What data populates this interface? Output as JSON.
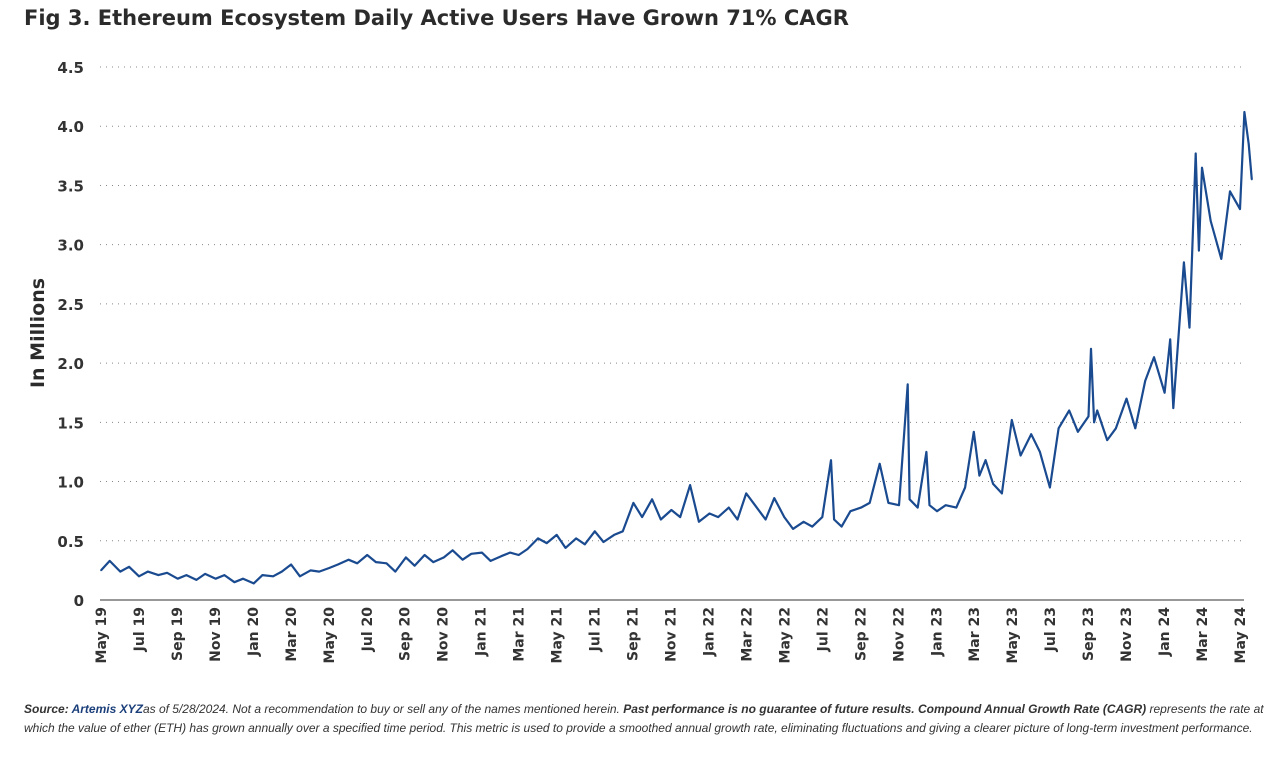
{
  "chart_data": {
    "type": "line",
    "title": "Fig 3. Ethereum Ecosystem Daily Active Users Have Grown 71% CAGR",
    "xlabel": "",
    "ylabel": "In Millions",
    "ylim": [
      0,
      4.5
    ],
    "yticks": [
      "0",
      "0.5",
      "1.0",
      "1.5",
      "2.0",
      "2.5",
      "3.0",
      "3.5",
      "4.0",
      "4.5"
    ],
    "xlim": [
      "2019-05-01",
      "2024-05-01"
    ],
    "xticks": [
      "May 19",
      "Jul 19",
      "Sep 19",
      "Nov 19",
      "Jan 20",
      "Mar 20",
      "May 20",
      "Jul 20",
      "Sep 20",
      "Nov 20",
      "Jan 21",
      "Mar 21",
      "May 21",
      "Jul 21",
      "Sep 21",
      "Nov 21",
      "Jan 22",
      "Mar 22",
      "May 22",
      "Jul 22",
      "Sep 22",
      "Nov 22",
      "Jan 23",
      "Mar 23",
      "May 23",
      "Jul 23",
      "Sep 23",
      "Nov 23",
      "Jan 24",
      "Mar 24",
      "May 24"
    ],
    "grid": "horizontal dotted",
    "line_color": "#1a4a8f",
    "series": [
      {
        "points": [
          [
            "2019-05-01",
            0.25
          ],
          [
            "2019-05-15",
            0.33
          ],
          [
            "2019-06-01",
            0.24
          ],
          [
            "2019-06-15",
            0.28
          ],
          [
            "2019-07-01",
            0.2
          ],
          [
            "2019-07-15",
            0.24
          ],
          [
            "2019-08-01",
            0.21
          ],
          [
            "2019-08-15",
            0.23
          ],
          [
            "2019-09-01",
            0.18
          ],
          [
            "2019-09-15",
            0.21
          ],
          [
            "2019-10-01",
            0.17
          ],
          [
            "2019-10-15",
            0.22
          ],
          [
            "2019-11-01",
            0.18
          ],
          [
            "2019-11-15",
            0.21
          ],
          [
            "2019-12-01",
            0.15
          ],
          [
            "2019-12-15",
            0.18
          ],
          [
            "2020-01-01",
            0.14
          ],
          [
            "2020-01-15",
            0.21
          ],
          [
            "2020-02-01",
            0.2
          ],
          [
            "2020-02-15",
            0.24
          ],
          [
            "2020-03-01",
            0.3
          ],
          [
            "2020-03-15",
            0.2
          ],
          [
            "2020-04-01",
            0.25
          ],
          [
            "2020-04-15",
            0.24
          ],
          [
            "2020-05-01",
            0.27
          ],
          [
            "2020-05-15",
            0.3
          ],
          [
            "2020-06-01",
            0.34
          ],
          [
            "2020-06-15",
            0.31
          ],
          [
            "2020-07-01",
            0.38
          ],
          [
            "2020-07-15",
            0.32
          ],
          [
            "2020-08-01",
            0.31
          ],
          [
            "2020-08-15",
            0.24
          ],
          [
            "2020-09-01",
            0.36
          ],
          [
            "2020-09-15",
            0.29
          ],
          [
            "2020-10-01",
            0.38
          ],
          [
            "2020-10-15",
            0.32
          ],
          [
            "2020-11-01",
            0.36
          ],
          [
            "2020-11-15",
            0.42
          ],
          [
            "2020-12-01",
            0.34
          ],
          [
            "2020-12-15",
            0.39
          ],
          [
            "2021-01-01",
            0.4
          ],
          [
            "2021-01-15",
            0.33
          ],
          [
            "2021-02-01",
            0.37
          ],
          [
            "2021-02-15",
            0.4
          ],
          [
            "2021-03-01",
            0.38
          ],
          [
            "2021-03-15",
            0.43
          ],
          [
            "2021-04-01",
            0.52
          ],
          [
            "2021-04-15",
            0.48
          ],
          [
            "2021-05-01",
            0.55
          ],
          [
            "2021-05-15",
            0.44
          ],
          [
            "2021-06-01",
            0.52
          ],
          [
            "2021-06-15",
            0.47
          ],
          [
            "2021-07-01",
            0.58
          ],
          [
            "2021-07-15",
            0.49
          ],
          [
            "2021-08-01",
            0.55
          ],
          [
            "2021-08-15",
            0.58
          ],
          [
            "2021-09-01",
            0.82
          ],
          [
            "2021-09-15",
            0.7
          ],
          [
            "2021-10-01",
            0.85
          ],
          [
            "2021-10-15",
            0.68
          ],
          [
            "2021-11-01",
            0.76
          ],
          [
            "2021-11-15",
            0.7
          ],
          [
            "2021-12-01",
            0.97
          ],
          [
            "2021-12-15",
            0.66
          ],
          [
            "2022-01-01",
            0.73
          ],
          [
            "2022-01-15",
            0.7
          ],
          [
            "2022-02-01",
            0.78
          ],
          [
            "2022-02-15",
            0.68
          ],
          [
            "2022-03-01",
            0.9
          ],
          [
            "2022-03-15",
            0.8
          ],
          [
            "2022-04-01",
            0.68
          ],
          [
            "2022-04-15",
            0.86
          ],
          [
            "2022-05-01",
            0.7
          ],
          [
            "2022-05-15",
            0.6
          ],
          [
            "2022-06-01",
            0.66
          ],
          [
            "2022-06-15",
            0.62
          ],
          [
            "2022-07-01",
            0.7
          ],
          [
            "2022-07-15",
            1.18
          ],
          [
            "2022-07-20",
            0.68
          ],
          [
            "2022-08-01",
            0.62
          ],
          [
            "2022-08-15",
            0.75
          ],
          [
            "2022-09-01",
            0.78
          ],
          [
            "2022-09-15",
            0.82
          ],
          [
            "2022-10-01",
            1.15
          ],
          [
            "2022-10-15",
            0.82
          ],
          [
            "2022-11-01",
            0.8
          ],
          [
            "2022-11-15",
            1.82
          ],
          [
            "2022-11-18",
            0.85
          ],
          [
            "2022-12-01",
            0.78
          ],
          [
            "2022-12-15",
            1.25
          ],
          [
            "2022-12-20",
            0.8
          ],
          [
            "2023-01-01",
            0.75
          ],
          [
            "2023-01-15",
            0.8
          ],
          [
            "2023-02-01",
            0.78
          ],
          [
            "2023-02-15",
            0.95
          ],
          [
            "2023-03-01",
            1.42
          ],
          [
            "2023-03-10",
            1.05
          ],
          [
            "2023-03-20",
            1.18
          ],
          [
            "2023-04-01",
            0.98
          ],
          [
            "2023-04-15",
            0.9
          ],
          [
            "2023-05-01",
            1.52
          ],
          [
            "2023-05-15",
            1.22
          ],
          [
            "2023-06-01",
            1.4
          ],
          [
            "2023-06-15",
            1.25
          ],
          [
            "2023-07-01",
            0.95
          ],
          [
            "2023-07-15",
            1.45
          ],
          [
            "2023-08-01",
            1.6
          ],
          [
            "2023-08-15",
            1.42
          ],
          [
            "2023-09-01",
            1.55
          ],
          [
            "2023-09-05",
            2.12
          ],
          [
            "2023-09-10",
            1.5
          ],
          [
            "2023-09-15",
            1.6
          ],
          [
            "2023-10-01",
            1.35
          ],
          [
            "2023-10-15",
            1.45
          ],
          [
            "2023-11-01",
            1.7
          ],
          [
            "2023-11-15",
            1.45
          ],
          [
            "2023-12-01",
            1.85
          ],
          [
            "2023-12-15",
            2.05
          ],
          [
            "2024-01-01",
            1.75
          ],
          [
            "2024-01-10",
            2.2
          ],
          [
            "2024-01-15",
            1.62
          ],
          [
            "2024-02-01",
            2.85
          ],
          [
            "2024-02-10",
            2.3
          ],
          [
            "2024-02-20",
            3.77
          ],
          [
            "2024-02-25",
            2.95
          ],
          [
            "2024-03-01",
            3.65
          ],
          [
            "2024-03-15",
            3.2
          ],
          [
            "2024-04-01",
            2.88
          ],
          [
            "2024-04-15",
            3.45
          ],
          [
            "2024-05-01",
            3.3
          ],
          [
            "2024-05-08",
            4.12
          ],
          [
            "2024-05-15",
            3.85
          ],
          [
            "2024-05-20",
            3.55
          ]
        ]
      }
    ]
  },
  "footer": {
    "source_label": "Source",
    "source_name": "Artemis XYZ",
    "text1": "as of 5/28/2024. Not a recommendation to buy or sell any of the names mentioned herein. ",
    "bold_text": "Past performance is no guarantee of future results. Compound Annual Growth Rate (CAGR)",
    "text2": " represents the rate at which the value of ether (ETH) has grown annually over a specified time period. This metric is used to provide a smoothed annual growth rate, eliminating fluctuations and giving a clearer picture of long-term investment performance."
  }
}
